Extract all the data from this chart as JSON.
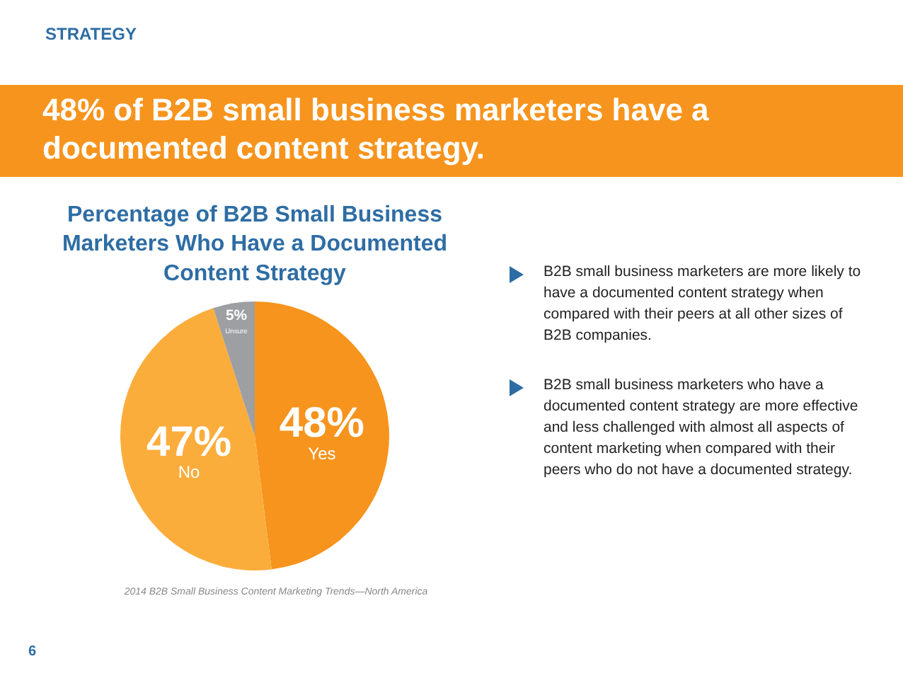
{
  "chart_data": {
    "type": "pie",
    "title": "Percentage of B2B Small Business Marketers Who Have a Documented Content Strategy",
    "categories": [
      "Yes",
      "No",
      "Unsure"
    ],
    "values": [
      48,
      47,
      5
    ],
    "colors": [
      "#f7941d",
      "#fbad3c",
      "#9d9fa2"
    ],
    "value_labels": [
      "48%",
      "47%",
      "5%"
    ],
    "legend": false,
    "annotations": [
      "STRATEGY",
      "48% of B2B small business marketers have a documented content strategy.",
      "B2B small business marketers are more likely to have a documented content strategy when compared with their peers at all other sizes of B2B companies.",
      "B2B small business marketers who have a documented content strategy are more effective and less challenged with almost all aspects of content marketing when compared with their peers who do not have a documented strategy.",
      "2014 B2B Small Business Content Marketing Trends—North America",
      "6"
    ]
  }
}
